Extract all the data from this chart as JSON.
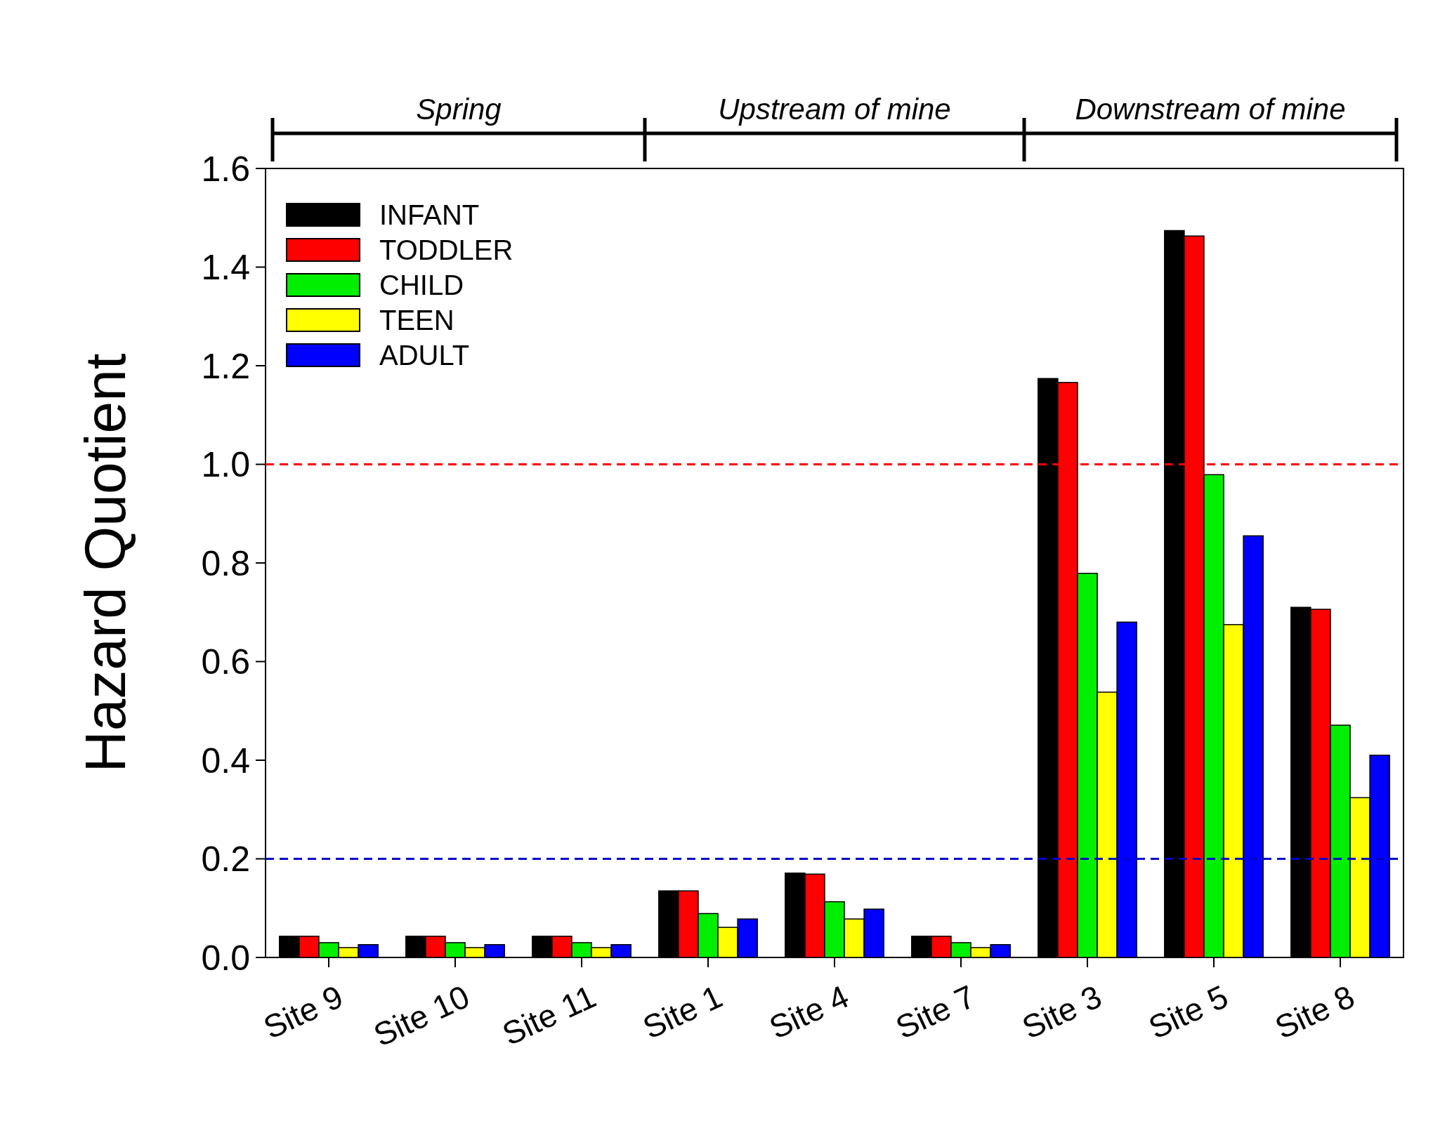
{
  "chart_data": {
    "type": "bar",
    "ylabel": "Hazard Quotient",
    "categories": [
      "Site 9",
      "Site 10",
      "Site 11",
      "Site 1",
      "Site 4",
      "Site 7",
      "Site 3",
      "Site 5",
      "Site 8"
    ],
    "series": [
      {
        "name": "INFANT",
        "color": "#000000",
        "values": [
          0.043,
          0.043,
          0.043,
          0.135,
          0.171,
          0.043,
          1.174,
          1.474,
          0.71
        ]
      },
      {
        "name": "TODDLER",
        "color": "#ff0000",
        "values": [
          0.043,
          0.043,
          0.043,
          0.135,
          0.169,
          0.043,
          1.166,
          1.463,
          0.706
        ]
      },
      {
        "name": "CHILD",
        "color": "#00ee00",
        "values": [
          0.03,
          0.03,
          0.03,
          0.089,
          0.113,
          0.03,
          0.779,
          0.979,
          0.471
        ]
      },
      {
        "name": "TEEN",
        "color": "#ffff00",
        "values": [
          0.02,
          0.02,
          0.02,
          0.061,
          0.078,
          0.02,
          0.538,
          0.675,
          0.324
        ]
      },
      {
        "name": "ADULT",
        "color": "#0000ff",
        "values": [
          0.026,
          0.026,
          0.026,
          0.078,
          0.098,
          0.026,
          0.68,
          0.855,
          0.41
        ]
      }
    ],
    "ylim": [
      0,
      1.6
    ],
    "yticks": [
      {
        "value": 0,
        "label": "0.0"
      },
      {
        "value": 0.2,
        "label": "0.2"
      },
      {
        "value": 0.4,
        "label": "0.4"
      },
      {
        "value": 0.6,
        "label": "0.6"
      },
      {
        "value": 0.8,
        "label": "0.8"
      },
      {
        "value": 1,
        "label": "1.0"
      },
      {
        "value": 1.2,
        "label": "1.2"
      },
      {
        "value": 1.4,
        "label": "1.4"
      },
      {
        "value": 1.6,
        "label": "1.6"
      }
    ],
    "ref_lines": [
      {
        "axis": "y",
        "value": 1,
        "color": "#ff0000",
        "line_style": "dashed"
      },
      {
        "axis": "y",
        "value": 0.2,
        "color": "#0000cc",
        "line_style": "dashed"
      }
    ],
    "annotations": [
      "Spring",
      "Upstream of mine",
      "Downstream of mine"
    ],
    "legend": "top left",
    "grid": false
  }
}
